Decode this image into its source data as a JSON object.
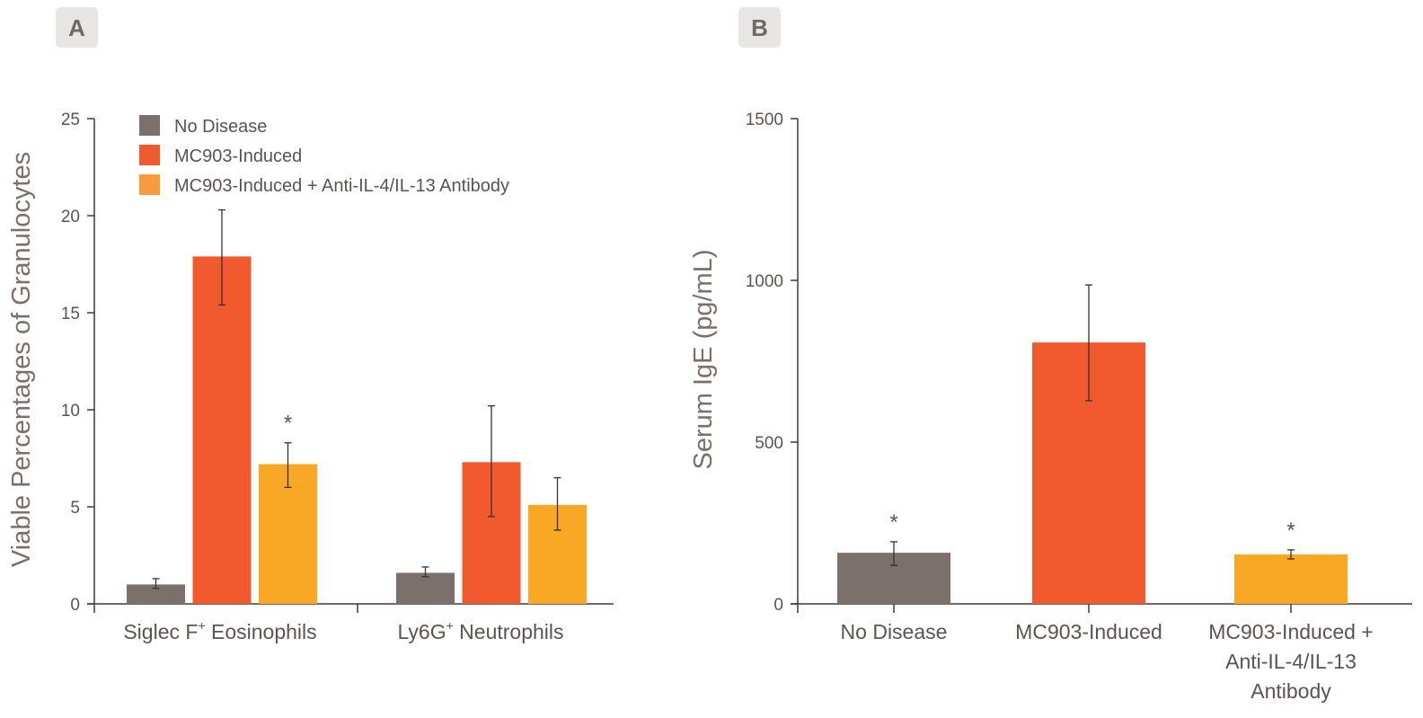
{
  "colors": {
    "no_disease": "#7b706b",
    "mc903": "#f15a2e",
    "antibody": "#f9a825",
    "axis": "#3a3a3a"
  },
  "chart_data": [
    {
      "panel": "A",
      "type": "bar",
      "ylabel": "Viable Percentages of Granulocytes",
      "ylim": [
        0,
        25
      ],
      "yticks": [
        "0",
        "5",
        "10",
        "15",
        "20",
        "25"
      ],
      "categories": [
        "Siglec F",
        "Ly6G"
      ],
      "category_sup": [
        "+",
        "+"
      ],
      "category_suffix": [
        " Eosinophils",
        " Neutrophils"
      ],
      "legend": [
        "No Disease",
        "MC903-Induced",
        "MC903-Induced + Anti-IL-4/IL-13 Antibody"
      ],
      "legend_position": "top-left",
      "series": [
        {
          "name": "No Disease",
          "values": [
            1.0,
            1.6
          ],
          "err_hi": [
            1.3,
            1.9
          ],
          "err_lo": [
            0.8,
            1.4
          ],
          "sig": [
            "",
            ""
          ]
        },
        {
          "name": "MC903-Induced",
          "values": [
            17.9,
            7.3
          ],
          "err_hi": [
            20.3,
            10.2
          ],
          "err_lo": [
            15.4,
            4.5
          ],
          "sig": [
            "",
            ""
          ]
        },
        {
          "name": "MC903-Induced + Anti-IL-4/IL-13 Antibody",
          "values": [
            7.2,
            5.1
          ],
          "err_hi": [
            8.3,
            6.5
          ],
          "err_lo": [
            6.0,
            3.8
          ],
          "sig": [
            "*",
            ""
          ]
        }
      ]
    },
    {
      "panel": "B",
      "type": "bar",
      "ylabel": "Serum IgE (pg/mL)",
      "ylim": [
        0,
        1500
      ],
      "yticks": [
        "0",
        "500",
        "1000",
        "1500"
      ],
      "categories": [
        "No Disease",
        "MC903-Induced",
        "MC903-Induced + Anti-IL-4/IL-13 Antibody"
      ],
      "category_lines": [
        [
          "No Disease"
        ],
        [
          "MC903-Induced"
        ],
        [
          "MC903-Induced +",
          "Anti-IL-4/IL-13",
          "Antibody"
        ]
      ],
      "values": [
        158,
        808,
        153
      ],
      "err_hi": [
        192,
        986,
        167
      ],
      "err_lo": [
        119,
        628,
        139
      ],
      "sig": [
        "*",
        "",
        "*"
      ]
    }
  ]
}
